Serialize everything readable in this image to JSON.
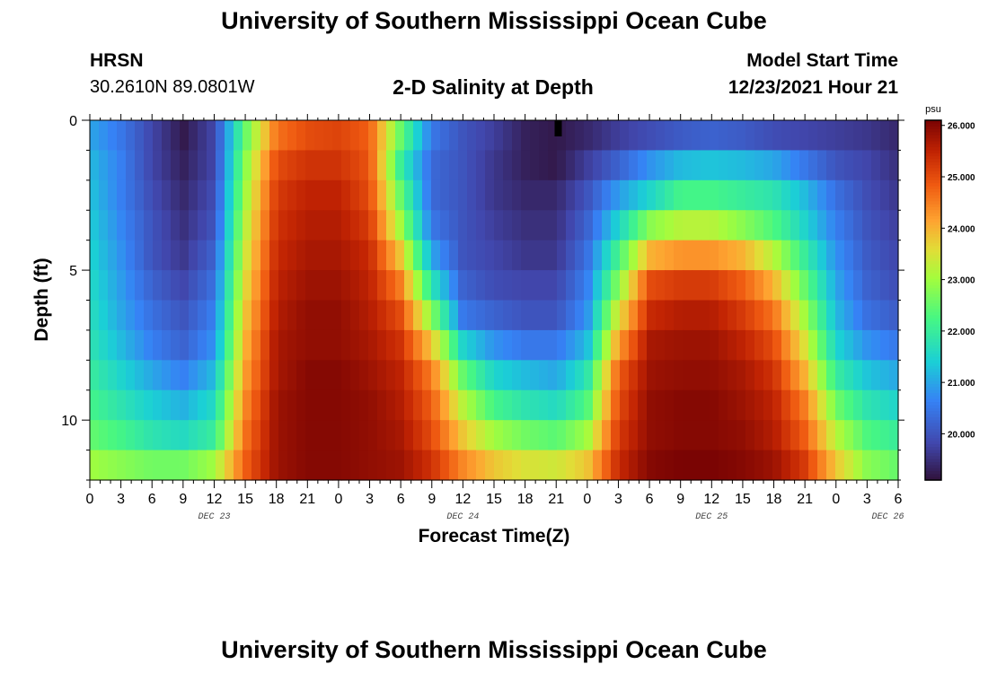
{
  "header": {
    "title": "University of Southern Mississippi Ocean Cube",
    "station": "HRSN",
    "coords": "30.2610N  89.0801W",
    "plot_title": "2-D Salinity at Depth",
    "model_label": "Model Start Time",
    "model_time": "12/23/2021 Hour 21"
  },
  "footer": {
    "title": "University of Southern Mississippi Ocean Cube"
  },
  "chart_data": {
    "type": "heatmap",
    "title": "2-D Salinity at Depth",
    "xlabel": "Forecast Time(Z)",
    "ylabel": "Depth (ft)",
    "x_tick_labels": [
      "0",
      "3",
      "6",
      "9",
      "12",
      "15",
      "18",
      "21",
      "0",
      "3",
      "6",
      "9",
      "12",
      "15",
      "18",
      "21",
      "0",
      "3",
      "6",
      "9",
      "12",
      "15",
      "18",
      "21",
      "0",
      "3",
      "6"
    ],
    "day_labels": [
      {
        "label": "DEC 23",
        "hour": 12
      },
      {
        "label": "DEC 24",
        "hour": 36
      },
      {
        "label": "DEC 25",
        "hour": 60
      },
      {
        "label": "DEC 26",
        "hour": 77
      }
    ],
    "xlim_hours": [
      0,
      78
    ],
    "ylim_ft": [
      0,
      12
    ],
    "y_ticks": [
      0,
      5,
      10
    ],
    "colorbar": {
      "unit": "psu",
      "min": 19.1,
      "max": 26.1,
      "tick_labels": [
        "26.000",
        "25.000",
        "24.000",
        "23.000",
        "22.000",
        "21.000",
        "20.000"
      ],
      "tick_values": [
        26,
        25,
        24,
        23,
        22,
        21,
        20
      ]
    },
    "model_start_marker_hour": 45.2,
    "depth_levels_ft": [
      0.5,
      1.5,
      2.5,
      3.5,
      4.5,
      5.5,
      6.5,
      7.5,
      8.5,
      9.5,
      10.5,
      11.5
    ],
    "time_hours": [
      0,
      3,
      6,
      9,
      12,
      15,
      18,
      21,
      24,
      27,
      30,
      33,
      36,
      39,
      42,
      45,
      48,
      51,
      54,
      57,
      60,
      63,
      66,
      69,
      72,
      75,
      78
    ],
    "salinity_psu": [
      [
        21.0,
        20.5,
        19.8,
        19.2,
        19.8,
        22.5,
        24.6,
        25.0,
        25.1,
        24.8,
        22.5,
        20.5,
        20.0,
        19.7,
        19.3,
        19.2,
        19.4,
        19.7,
        19.9,
        20.1,
        20.2,
        20.1,
        19.9,
        19.8,
        19.7,
        19.6,
        19.4
      ],
      [
        21.2,
        20.6,
        19.8,
        19.3,
        19.8,
        22.8,
        25.0,
        25.3,
        25.3,
        24.9,
        22.0,
        20.3,
        20.0,
        19.6,
        19.3,
        19.2,
        19.7,
        20.2,
        20.8,
        21.2,
        21.3,
        21.2,
        21.0,
        20.5,
        20.0,
        19.8,
        19.5
      ],
      [
        21.3,
        20.6,
        19.9,
        19.4,
        19.9,
        23.0,
        25.2,
        25.5,
        25.5,
        25.0,
        22.5,
        20.3,
        20.0,
        19.6,
        19.4,
        19.4,
        20.0,
        20.9,
        21.5,
        22.2,
        22.2,
        22.0,
        21.8,
        21.2,
        20.4,
        19.9,
        19.6
      ],
      [
        21.4,
        20.7,
        20.0,
        19.5,
        20.0,
        23.2,
        25.3,
        25.6,
        25.6,
        25.2,
        23.0,
        20.5,
        20.0,
        19.7,
        19.5,
        19.5,
        20.2,
        21.5,
        22.8,
        23.2,
        23.2,
        22.8,
        22.3,
        21.5,
        20.6,
        20.0,
        19.7
      ],
      [
        21.5,
        20.8,
        20.0,
        19.6,
        20.2,
        23.4,
        25.4,
        25.7,
        25.7,
        25.4,
        23.8,
        21.0,
        20.0,
        19.8,
        19.6,
        19.6,
        20.4,
        22.2,
        24.0,
        24.3,
        24.3,
        24.0,
        23.2,
        22.0,
        20.8,
        20.1,
        19.8
      ],
      [
        21.6,
        20.9,
        20.2,
        19.8,
        20.4,
        23.6,
        25.5,
        25.8,
        25.8,
        25.5,
        24.5,
        21.8,
        20.2,
        19.9,
        19.8,
        19.8,
        20.6,
        22.8,
        25.0,
        25.2,
        25.2,
        24.8,
        24.0,
        22.5,
        21.0,
        20.2,
        19.9
      ],
      [
        21.7,
        21.0,
        20.4,
        20.0,
        20.6,
        23.8,
        25.6,
        25.9,
        25.9,
        25.6,
        25.0,
        22.8,
        20.5,
        20.2,
        20.0,
        20.0,
        20.8,
        23.5,
        25.4,
        25.6,
        25.6,
        25.2,
        24.6,
        23.0,
        21.2,
        20.4,
        20.1
      ],
      [
        21.8,
        21.2,
        20.6,
        20.2,
        20.8,
        24.0,
        25.7,
        25.9,
        25.9,
        25.7,
        25.3,
        23.8,
        21.5,
        20.8,
        20.5,
        20.5,
        21.2,
        24.2,
        25.7,
        25.8,
        25.8,
        25.5,
        25.0,
        23.5,
        21.5,
        20.8,
        20.5
      ],
      [
        22.0,
        21.5,
        21.0,
        20.6,
        21.2,
        24.2,
        25.7,
        26.0,
        26.0,
        25.8,
        25.5,
        24.5,
        22.5,
        21.5,
        21.2,
        21.0,
        21.8,
        24.8,
        25.8,
        25.9,
        25.9,
        25.7,
        25.3,
        24.0,
        22.0,
        21.3,
        21.0
      ],
      [
        22.2,
        21.8,
        21.4,
        21.1,
        21.6,
        24.4,
        25.8,
        26.0,
        26.0,
        25.9,
        25.6,
        24.8,
        23.2,
        22.2,
        21.8,
        21.6,
        22.3,
        25.0,
        25.9,
        26.0,
        26.0,
        25.8,
        25.5,
        24.5,
        22.6,
        21.8,
        21.5
      ],
      [
        22.5,
        22.2,
        21.8,
        21.6,
        22.0,
        24.6,
        25.8,
        26.0,
        26.0,
        25.9,
        25.7,
        25.0,
        23.8,
        23.0,
        22.6,
        22.4,
        23.0,
        25.2,
        25.9,
        26.0,
        26.0,
        25.9,
        25.6,
        24.8,
        23.2,
        22.3,
        22.0
      ],
      [
        23.0,
        22.8,
        22.6,
        22.6,
        23.0,
        24.8,
        25.8,
        26.0,
        26.0,
        25.9,
        25.8,
        25.3,
        24.4,
        23.8,
        23.5,
        23.4,
        23.8,
        25.4,
        26.0,
        26.1,
        26.1,
        26.0,
        25.8,
        25.2,
        23.8,
        22.8,
        22.5
      ]
    ]
  }
}
